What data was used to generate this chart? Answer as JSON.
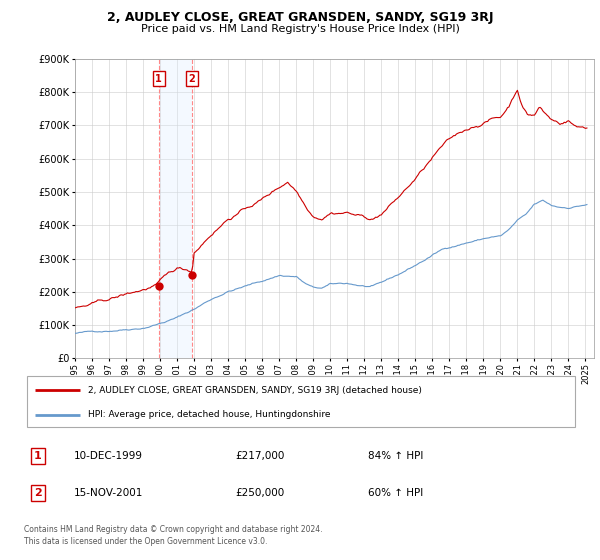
{
  "title": "2, AUDLEY CLOSE, GREAT GRANSDEN, SANDY, SG19 3RJ",
  "subtitle": "Price paid vs. HM Land Registry's House Price Index (HPI)",
  "legend_line1": "2, AUDLEY CLOSE, GREAT GRANSDEN, SANDY, SG19 3RJ (detached house)",
  "legend_line2": "HPI: Average price, detached house, Huntingdonshire",
  "footer": "Contains HM Land Registry data © Crown copyright and database right 2024.\nThis data is licensed under the Open Government Licence v3.0.",
  "purchase1_date": "10-DEC-1999",
  "purchase1_price": 217000,
  "purchase1_hpi": "84% ↑ HPI",
  "purchase2_date": "15-NOV-2001",
  "purchase2_price": 250000,
  "purchase2_hpi": "60% ↑ HPI",
  "sale_color": "#cc0000",
  "hpi_color": "#6699cc",
  "shade_color": "#ddeeff",
  "marker_box_color": "#cc0000",
  "ylim": [
    0,
    900000
  ],
  "yticks": [
    0,
    100000,
    200000,
    300000,
    400000,
    500000,
    600000,
    700000,
    800000,
    900000
  ],
  "purchase1_x": 1999.92,
  "purchase2_x": 2001.88,
  "xlim_start": 1995,
  "xlim_end": 2025.5
}
